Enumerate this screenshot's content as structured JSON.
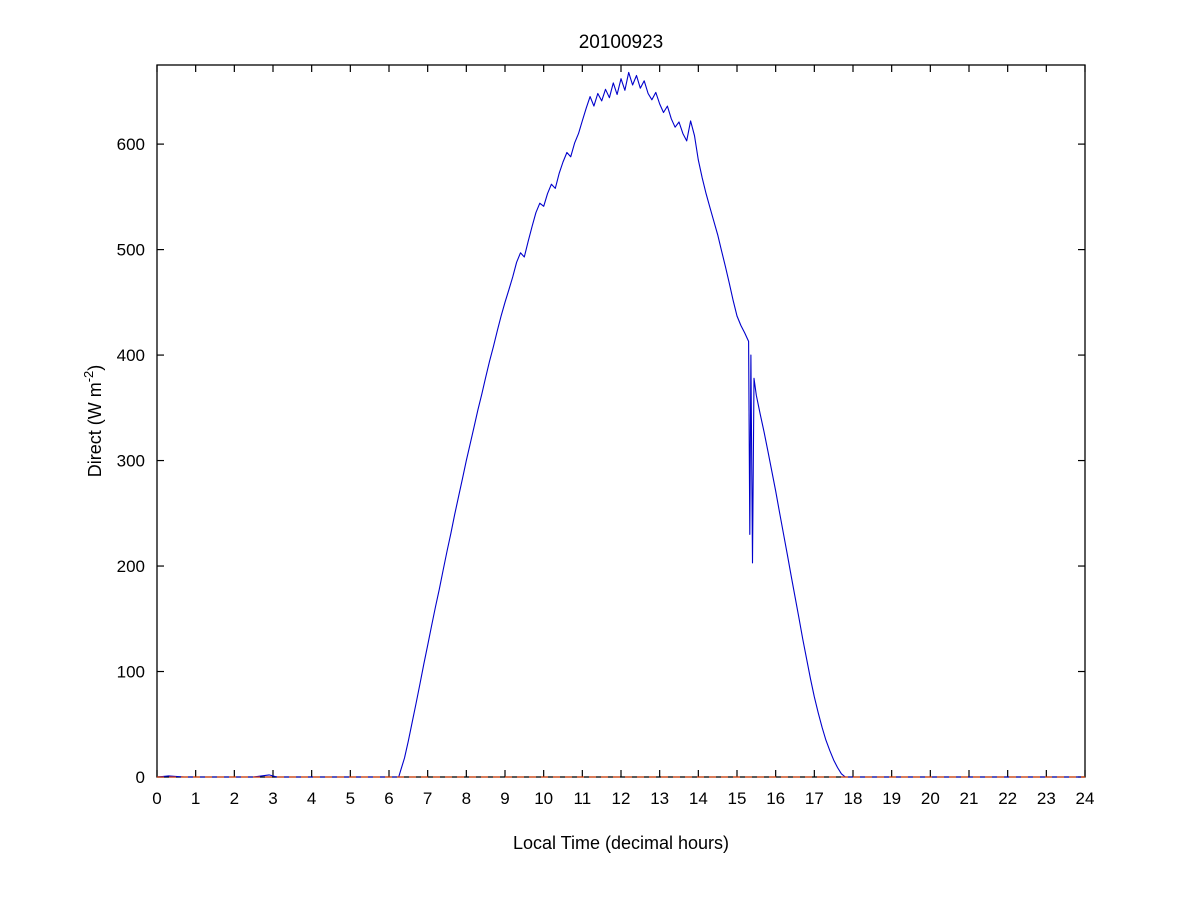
{
  "figure": {
    "background": "#ffffff"
  },
  "chart_data": {
    "type": "line",
    "title": "20100923",
    "xlabel": "Local Time (decimal hours)",
    "ylabel": {
      "main": "Direct (W m",
      "sup": "-2",
      "close": ")"
    },
    "xlim": [
      0,
      24
    ],
    "ylim": [
      0,
      675
    ],
    "xticks": [
      0,
      1,
      2,
      3,
      4,
      5,
      6,
      7,
      8,
      9,
      10,
      11,
      12,
      13,
      14,
      15,
      16,
      17,
      18,
      19,
      20,
      21,
      22,
      23,
      24
    ],
    "yticks": [
      0,
      100,
      200,
      300,
      400,
      500,
      600
    ],
    "grid": false,
    "legend": "none",
    "colors": {
      "series": "#0000cc",
      "zero_line": "#ff4400",
      "axis": "#000000"
    },
    "reference_lines": [
      {
        "y": 0,
        "style": "dashed",
        "color": "#ff4400",
        "x_start": 0,
        "x_end": 24
      }
    ],
    "series": [
      {
        "name": "direct_irradiance",
        "color": "#0000cc",
        "points": [
          [
            0,
            0
          ],
          [
            0.3,
            1
          ],
          [
            0.7,
            0
          ],
          [
            1,
            0
          ],
          [
            1.5,
            0
          ],
          [
            2,
            0
          ],
          [
            2.5,
            0
          ],
          [
            2.9,
            2
          ],
          [
            3.1,
            0
          ],
          [
            3.5,
            0
          ],
          [
            4,
            0
          ],
          [
            4.5,
            0
          ],
          [
            5,
            0
          ],
          [
            5.5,
            0
          ],
          [
            6,
            0
          ],
          [
            6.25,
            0
          ],
          [
            6.3,
            6
          ],
          [
            6.4,
            18
          ],
          [
            6.5,
            34
          ],
          [
            6.6,
            52
          ],
          [
            6.7,
            70
          ],
          [
            6.8,
            88
          ],
          [
            6.9,
            107
          ],
          [
            7,
            125
          ],
          [
            7.1,
            143
          ],
          [
            7.2,
            161
          ],
          [
            7.3,
            178
          ],
          [
            7.4,
            196
          ],
          [
            7.5,
            214
          ],
          [
            7.6,
            231
          ],
          [
            7.7,
            249
          ],
          [
            7.8,
            266
          ],
          [
            7.9,
            283
          ],
          [
            8,
            300
          ],
          [
            8.1,
            316
          ],
          [
            8.2,
            332
          ],
          [
            8.3,
            348
          ],
          [
            8.4,
            363
          ],
          [
            8.5,
            379
          ],
          [
            8.6,
            394
          ],
          [
            8.7,
            408
          ],
          [
            8.8,
            423
          ],
          [
            8.9,
            437
          ],
          [
            9,
            450
          ],
          [
            9.1,
            462
          ],
          [
            9.2,
            474
          ],
          [
            9.3,
            488
          ],
          [
            9.4,
            497
          ],
          [
            9.5,
            493
          ],
          [
            9.6,
            508
          ],
          [
            9.7,
            522
          ],
          [
            9.8,
            535
          ],
          [
            9.9,
            544
          ],
          [
            10,
            541
          ],
          [
            10.1,
            553
          ],
          [
            10.2,
            562
          ],
          [
            10.3,
            558
          ],
          [
            10.4,
            572
          ],
          [
            10.5,
            583
          ],
          [
            10.6,
            592
          ],
          [
            10.7,
            588
          ],
          [
            10.8,
            601
          ],
          [
            10.9,
            610
          ],
          [
            11,
            622
          ],
          [
            11.1,
            634
          ],
          [
            11.2,
            645
          ],
          [
            11.3,
            636
          ],
          [
            11.4,
            648
          ],
          [
            11.5,
            641
          ],
          [
            11.6,
            652
          ],
          [
            11.7,
            644
          ],
          [
            11.8,
            658
          ],
          [
            11.9,
            647
          ],
          [
            12,
            662
          ],
          [
            12.1,
            651
          ],
          [
            12.2,
            668
          ],
          [
            12.3,
            656
          ],
          [
            12.4,
            665
          ],
          [
            12.5,
            653
          ],
          [
            12.6,
            660
          ],
          [
            12.7,
            648
          ],
          [
            12.8,
            642
          ],
          [
            12.9,
            649
          ],
          [
            13,
            638
          ],
          [
            13.1,
            630
          ],
          [
            13.2,
            636
          ],
          [
            13.3,
            624
          ],
          [
            13.4,
            616
          ],
          [
            13.5,
            621
          ],
          [
            13.6,
            610
          ],
          [
            13.7,
            603
          ],
          [
            13.8,
            622
          ],
          [
            13.9,
            608
          ],
          [
            14,
            585
          ],
          [
            14.1,
            568
          ],
          [
            14.2,
            553
          ],
          [
            14.3,
            540
          ],
          [
            14.4,
            527
          ],
          [
            14.5,
            514
          ],
          [
            14.6,
            499
          ],
          [
            14.7,
            484
          ],
          [
            14.8,
            468
          ],
          [
            14.9,
            452
          ],
          [
            15,
            437
          ],
          [
            15.1,
            428
          ],
          [
            15.2,
            421
          ],
          [
            15.3,
            413
          ],
          [
            15.33,
            230
          ],
          [
            15.36,
            400
          ],
          [
            15.4,
            203
          ],
          [
            15.44,
            378
          ],
          [
            15.5,
            362
          ],
          [
            15.6,
            344
          ],
          [
            15.7,
            327
          ],
          [
            15.8,
            309
          ],
          [
            15.9,
            290
          ],
          [
            16,
            271
          ],
          [
            16.1,
            251
          ],
          [
            16.2,
            231
          ],
          [
            16.3,
            211
          ],
          [
            16.4,
            191
          ],
          [
            16.5,
            171
          ],
          [
            16.6,
            151
          ],
          [
            16.7,
            131
          ],
          [
            16.8,
            112
          ],
          [
            16.9,
            93
          ],
          [
            17,
            76
          ],
          [
            17.1,
            61
          ],
          [
            17.2,
            47
          ],
          [
            17.3,
            35
          ],
          [
            17.4,
            25
          ],
          [
            17.5,
            16
          ],
          [
            17.6,
            9
          ],
          [
            17.7,
            3
          ],
          [
            17.8,
            0
          ],
          [
            18,
            0
          ],
          [
            18.5,
            0
          ],
          [
            19,
            0
          ],
          [
            19.5,
            0
          ],
          [
            20,
            0
          ],
          [
            20.5,
            0
          ],
          [
            21,
            0
          ],
          [
            21.5,
            0
          ],
          [
            22,
            0
          ],
          [
            22.5,
            0
          ],
          [
            23,
            0
          ],
          [
            23.5,
            0
          ],
          [
            24,
            0
          ]
        ]
      }
    ]
  }
}
